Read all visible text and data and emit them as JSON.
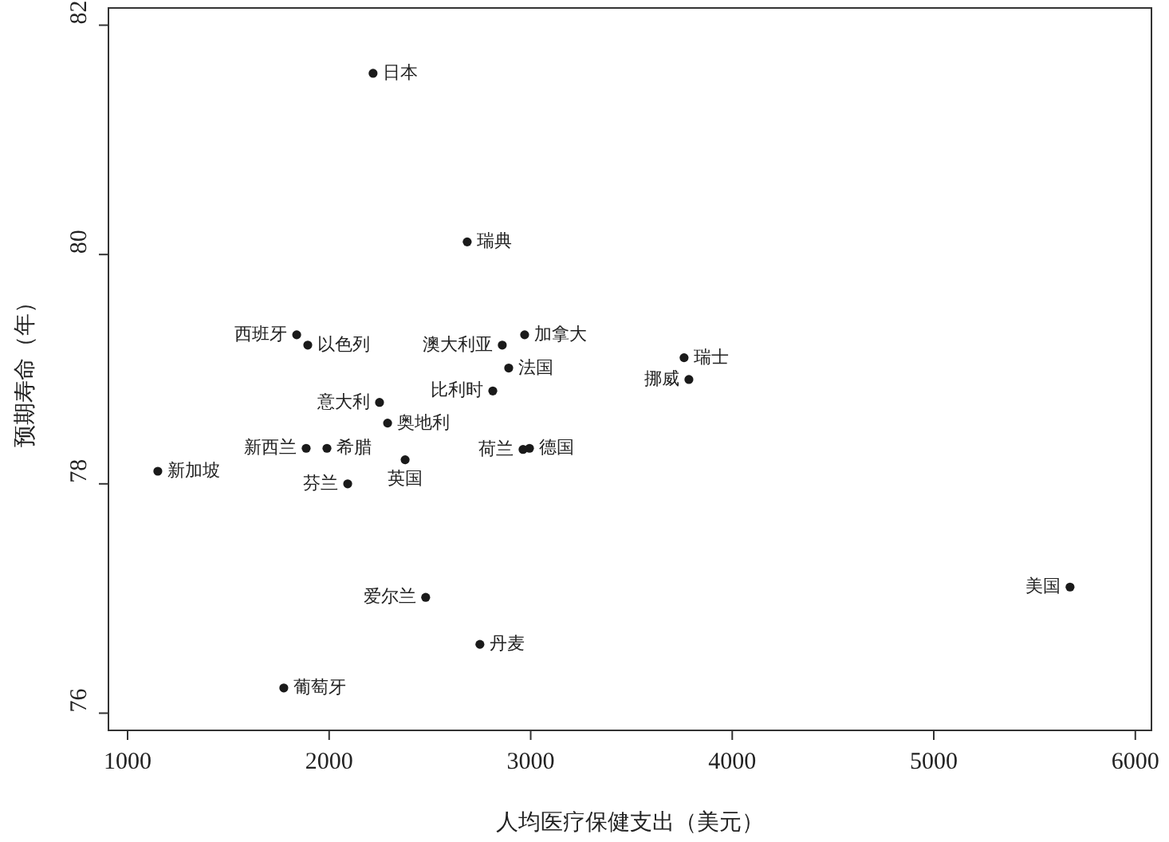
{
  "chart_data": {
    "type": "scatter",
    "xlabel": "人均医疗保健支出（美元）",
    "ylabel": "预期寿命（年）",
    "x": [
      2218,
      2685,
      1839,
      1894,
      2859,
      2970,
      2891,
      3761,
      3785,
      2812,
      2250,
      2290,
      1886,
      1989,
      2962,
      2994,
      2377,
      1150,
      2092,
      2479,
      5676,
      2748,
      1775
    ],
    "series": [
      {
        "color": "#1a1a1a",
        "values": [
          81.58,
          80.11,
          79.3,
          79.21,
          79.21,
          79.3,
          79.01,
          79.1,
          78.91,
          78.81,
          78.71,
          78.53,
          78.31,
          78.31,
          78.3,
          78.31,
          78.21,
          78.11,
          78.0,
          77.01,
          77.1,
          76.6,
          76.22
        ]
      }
    ],
    "annotations": [
      {
        "text": "日本",
        "x": 2218,
        "y": 81.58
      },
      {
        "text": "瑞典",
        "x": 2685,
        "y": 80.11
      },
      {
        "text": "西班牙",
        "x": 1839,
        "y": 79.3
      },
      {
        "text": "以色列",
        "x": 1894,
        "y": 79.21
      },
      {
        "text": "澳大利亚",
        "x": 2859,
        "y": 79.21
      },
      {
        "text": "加拿大",
        "x": 2970,
        "y": 79.3
      },
      {
        "text": "法国",
        "x": 2891,
        "y": 79.01
      },
      {
        "text": "瑞士",
        "x": 3761,
        "y": 79.1
      },
      {
        "text": "挪威",
        "x": 3785,
        "y": 78.91
      },
      {
        "text": "比利时",
        "x": 2812,
        "y": 78.81
      },
      {
        "text": "意大利",
        "x": 2250,
        "y": 78.71
      },
      {
        "text": "奥地利",
        "x": 2290,
        "y": 78.53
      },
      {
        "text": "新西兰",
        "x": 1886,
        "y": 78.31
      },
      {
        "text": "希腊",
        "x": 1989,
        "y": 78.31
      },
      {
        "text": "荷兰",
        "x": 2962,
        "y": 78.3
      },
      {
        "text": "德国",
        "x": 2994,
        "y": 78.31
      },
      {
        "text": "英国",
        "x": 2377,
        "y": 78.21
      },
      {
        "text": "新加坡",
        "x": 1150,
        "y": 78.11
      },
      {
        "text": "芬兰",
        "x": 2092,
        "y": 78.0
      },
      {
        "text": "爱尔兰",
        "x": 2479,
        "y": 77.01
      },
      {
        "text": "美国",
        "x": 5676,
        "y": 77.1
      },
      {
        "text": "丹麦",
        "x": 2748,
        "y": 76.6
      },
      {
        "text": "葡萄牙",
        "x": 1775,
        "y": 76.22
      }
    ],
    "xlim": [
      905,
      6080
    ],
    "ylim": [
      75.85,
      82.15
    ],
    "xticks": [
      1000,
      2000,
      3000,
      4000,
      5000,
      6000
    ],
    "yticks": [
      76,
      78,
      80,
      82
    ],
    "marker": "circle",
    "grid": false
  }
}
